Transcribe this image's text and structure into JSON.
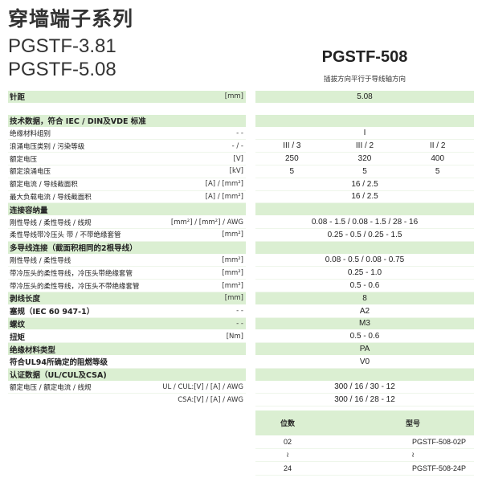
{
  "header": {
    "title": "穿墙端子系列",
    "models": [
      "PGSTF-3.81",
      "PGSTF-5.08"
    ],
    "product": "PGSTF-508",
    "subtitle": "插拔方向平行于导线轴方向"
  },
  "colors": {
    "green": "#dbefd2"
  },
  "rows": [
    {
      "label": "针距",
      "unit": "[mm]",
      "values": [
        "5.08"
      ],
      "style": "green-bold-small"
    },
    {
      "gap": true
    },
    {
      "label": "技术数据，符合 IEC / DIN及VDE 标准",
      "unit": "",
      "values": [
        ""
      ],
      "style": "green-bold"
    },
    {
      "label": "绝缘材料组别",
      "unit": "- -",
      "values": [
        "I"
      ]
    },
    {
      "label": "浪涌电压类别 / 污染等级",
      "unit": "- / -",
      "values": [
        "III / 3",
        "III / 2",
        "II / 2"
      ]
    },
    {
      "label": "额定电压",
      "unit": "[V]",
      "values": [
        "250",
        "320",
        "400"
      ]
    },
    {
      "label": "额定浪涌电压",
      "unit": "[kV]",
      "values": [
        "5",
        "5",
        "5"
      ]
    },
    {
      "label": "额定电流 / 导线截面积",
      "unit": "[A] / [mm²]",
      "values": [
        "16 / 2.5"
      ]
    },
    {
      "label": "最大负载电流 / 导线截面积",
      "unit": "[A] / [mm²]",
      "values": [
        "16 / 2.5"
      ]
    },
    {
      "label": "连接容纳量",
      "unit": "",
      "values": [
        ""
      ],
      "style": "green-bold"
    },
    {
      "label": "刚性导线 / 柔性导线 / 线规",
      "unit": "[mm²] / [mm²] / AWG",
      "values": [
        "0.08 - 1.5 / 0.08 - 1.5 / 28 - 16"
      ]
    },
    {
      "label": "柔性导线带冷压头 带 / 不带绝缘套管",
      "unit": "[mm²]",
      "values": [
        "0.25 - 0.5 / 0.25 - 1.5"
      ]
    },
    {
      "label": "多导线连接（截面积相同的2根导线）",
      "unit": "",
      "values": [
        ""
      ],
      "style": "green-bold"
    },
    {
      "label": "刚性导线 / 柔性导线",
      "unit": "[mm²]",
      "values": [
        "0.08 - 0.5 / 0.08 - 0.75"
      ]
    },
    {
      "label": "带冷压头的柔性导线，冷压头带绝缘套管",
      "unit": "[mm²]",
      "values": [
        "0.25 - 1.0"
      ]
    },
    {
      "label": "带冷压头的柔性导线，冷压头不带绝缘套管",
      "unit": "[mm²]",
      "values": [
        "0.5 - 0.6"
      ]
    },
    {
      "label": "剥线长度",
      "unit": "[mm]",
      "values": [
        "8"
      ],
      "style": "green-bold"
    },
    {
      "label": "塞规（IEC 60 947-1）",
      "unit": "- -",
      "values": [
        "A2"
      ],
      "style": "bold"
    },
    {
      "label": "螺纹",
      "unit": "- -",
      "values": [
        "M3"
      ],
      "style": "green-bold"
    },
    {
      "label": "扭矩",
      "unit": "[Nm]",
      "values": [
        "0.5 - 0.6"
      ],
      "style": "bold"
    },
    {
      "label": "绝缘材料类型",
      "unit": "",
      "values": [
        "PA"
      ],
      "style": "green-bold"
    },
    {
      "label": "符合UL94所确定的阻燃等级",
      "unit": "",
      "values": [
        "V0"
      ],
      "style": "bold"
    },
    {
      "label": "认证数据（UL/CUL及CSA)",
      "unit": "",
      "values": [
        ""
      ],
      "style": "green-bold"
    },
    {
      "label": "额定电压 / 额定电流 / 线规",
      "unit": "UL / CUL:[V] / [A] / AWG",
      "values": [
        "300 / 16 / 30 - 12"
      ]
    },
    {
      "label": "",
      "unit": "CSA:[V] / [A] / AWG",
      "values": [
        "300 / 16 / 28 - 12"
      ],
      "style": "noline"
    }
  ],
  "parts": {
    "headers": [
      "位数",
      "型号"
    ],
    "rows": [
      [
        "02",
        "PGSTF-508-02P"
      ],
      [
        "≀",
        "≀"
      ],
      [
        "24",
        "PGSTF-508-24P"
      ]
    ]
  }
}
